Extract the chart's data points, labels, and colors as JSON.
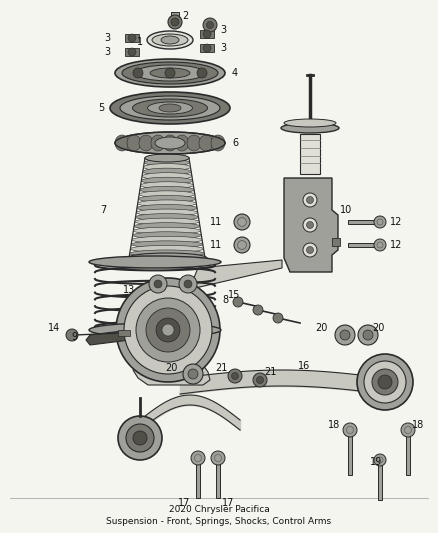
{
  "title_line1": "2020 Chrysler Pacifica",
  "title_line2": "Suspension - Front, Springs, Shocks, Control Arms",
  "bg_color": "#f5f5f0",
  "lc": "#2a2a2a",
  "gray1": "#c8c8c0",
  "gray2": "#a0a09a",
  "gray3": "#787870",
  "gray4": "#505048",
  "gray5": "#e0e0d8",
  "figw": 4.38,
  "figh": 5.33,
  "dpi": 100
}
